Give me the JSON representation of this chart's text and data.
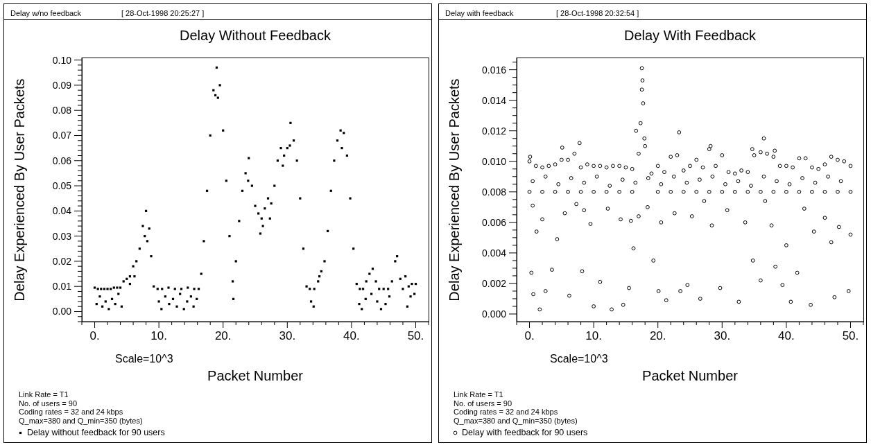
{
  "chart_data": [
    {
      "type": "scatter",
      "title": "Delay Without Feedback",
      "xlabel": "Packet Number",
      "ylabel": "Delay Experienced By User Packets",
      "annotations": [
        "Delay w/no feedback",
        "[ 28-Oct-1998 20:25:27 ]",
        "Scale=10^3",
        "Link Rate = T1",
        "No. of users = 90",
        "Coding rates = 32 and 24 kbps",
        "Q_max=380 and Q_min=350 (bytes)"
      ],
      "series": [
        {
          "name": "Delay without feedback for 90 users",
          "color": "#000000",
          "x": [
            0.0,
            0.5,
            1.0,
            1.5,
            2.0,
            2.5,
            3.0,
            3.5,
            4.0,
            4.5,
            5.0,
            5.5,
            6.0,
            6.5,
            7.0,
            7.5,
            8.0,
            8.5,
            8.8,
            9.2,
            9.8,
            10.5,
            11.5,
            12.5,
            13.5,
            14.5,
            15.5,
            16.2,
            16.6,
            17.0,
            17.5,
            18.0,
            18.5,
            19.0,
            19.5,
            20.0,
            20.5,
            21.0,
            21.5,
            22.0,
            22.5,
            23.0,
            23.5,
            24.0,
            24.5,
            25.0,
            25.5,
            26.0,
            26.5,
            27.0,
            27.5,
            28.0,
            28.5,
            29.0,
            29.5,
            30.0,
            30.5,
            31.0,
            31.5,
            32.0,
            32.5,
            33.0,
            33.5,
            34.2,
            34.8,
            35.3,
            35.8,
            36.3,
            36.8,
            37.3,
            37.8,
            38.3,
            38.8,
            39.3,
            39.8,
            40.3,
            40.8,
            41.3,
            41.8,
            42.3,
            42.8,
            43.3,
            43.8,
            44.3,
            45.0,
            45.7,
            46.3,
            46.8,
            47.1,
            47.6,
            48.0,
            48.4,
            48.9,
            49.4,
            50.0,
            5.5,
            6.2,
            7.8,
            8.2,
            18.8,
            19.2,
            23.9,
            25.8,
            26.2,
            27.3,
            29.3,
            30.4,
            35.0,
            38.5,
            0.3,
            0.8,
            1.2,
            1.7,
            2.2,
            2.7,
            3.2,
            3.7,
            4.2,
            10.0,
            10.4,
            11.0,
            11.6,
            12.2,
            12.8,
            13.3,
            13.9,
            14.4,
            15.0,
            15.4,
            15.9,
            21.6,
            33.7,
            34.1,
            41.2,
            41.6,
            42.2,
            43.1,
            44.0,
            44.6,
            45.3,
            45.9,
            48.7,
            49.2,
            49.8
          ],
          "values": [
            0.0095,
            0.009,
            0.009,
            0.009,
            0.009,
            0.009,
            0.0095,
            0.0095,
            0.0095,
            0.012,
            0.013,
            0.014,
            0.018,
            0.02,
            0.025,
            0.034,
            0.04,
            0.033,
            0.022,
            0.01,
            0.009,
            0.009,
            0.0095,
            0.009,
            0.009,
            0.0095,
            0.009,
            0.009,
            0.015,
            0.028,
            0.048,
            0.07,
            0.088,
            0.097,
            0.09,
            0.072,
            0.052,
            0.03,
            0.012,
            0.02,
            0.036,
            0.048,
            0.055,
            0.061,
            0.05,
            0.042,
            0.039,
            0.037,
            0.041,
            0.045,
            0.043,
            0.05,
            0.06,
            0.065,
            0.062,
            0.065,
            0.075,
            0.068,
            0.06,
            0.045,
            0.025,
            0.01,
            0.009,
            0.009,
            0.012,
            0.016,
            0.02,
            0.032,
            0.048,
            0.06,
            0.068,
            0.072,
            0.071,
            0.062,
            0.045,
            0.025,
            0.011,
            0.009,
            0.009,
            0.012,
            0.015,
            0.017,
            0.012,
            0.009,
            0.009,
            0.009,
            0.012,
            0.02,
            0.022,
            0.013,
            0.009,
            0.014,
            0.01,
            0.011,
            0.011,
            0.011,
            0.014,
            0.03,
            0.028,
            0.086,
            0.085,
            0.052,
            0.031,
            0.034,
            0.037,
            0.058,
            0.066,
            0.014,
            0.065,
            0.003,
            0.006,
            0.002,
            0.004,
            0.001,
            0.005,
            0.003,
            0.007,
            0.002,
            0.004,
            0.001,
            0.006,
            0.003,
            0.005,
            0.002,
            0.007,
            0.001,
            0.004,
            0.006,
            0.002,
            0.005,
            0.005,
            0.004,
            0.002,
            0.003,
            0.001,
            0.005,
            0.007,
            0.004,
            0.001,
            0.003,
            0.006,
            0.002,
            0.006,
            0.007
          ]
        }
      ],
      "xlim": [
        -2,
        52
      ],
      "xticks": [
        {
          "value": -2,
          "label": null
        },
        {
          "value": 0,
          "label": "0."
        },
        {
          "value": 2,
          "label": null
        },
        {
          "value": 4,
          "label": null
        },
        {
          "value": 6,
          "label": null
        },
        {
          "value": 8,
          "label": null
        },
        {
          "value": 10,
          "label": "10."
        },
        {
          "value": 12,
          "label": null
        },
        {
          "value": 14,
          "label": null
        },
        {
          "value": 16,
          "label": null
        },
        {
          "value": 18,
          "label": null
        },
        {
          "value": 20,
          "label": "20."
        },
        {
          "value": 22,
          "label": null
        },
        {
          "value": 24,
          "label": null
        },
        {
          "value": 26,
          "label": null
        },
        {
          "value": 28,
          "label": null
        },
        {
          "value": 30,
          "label": "30."
        },
        {
          "value": 32,
          "label": null
        },
        {
          "value": 34,
          "label": null
        },
        {
          "value": 36,
          "label": null
        },
        {
          "value": 38,
          "label": null
        },
        {
          "value": 40,
          "label": "40."
        },
        {
          "value": 42,
          "label": null
        },
        {
          "value": 44,
          "label": null
        },
        {
          "value": 46,
          "label": null
        },
        {
          "value": 48,
          "label": null
        },
        {
          "value": 50,
          "label": "50."
        },
        {
          "value": 52,
          "label": null
        }
      ],
      "ylim": [
        -0.004,
        0.101
      ],
      "yticks": [
        {
          "value": -0.004,
          "label": null
        },
        {
          "value": -0.002,
          "label": null
        },
        {
          "value": 0,
          "label": "0.00"
        },
        {
          "value": 0.002,
          "label": null
        },
        {
          "value": 0.004,
          "label": null
        },
        {
          "value": 0.006,
          "label": null
        },
        {
          "value": 0.008,
          "label": null
        },
        {
          "value": 0.01,
          "label": "0.01"
        },
        {
          "value": 0.012,
          "label": null
        },
        {
          "value": 0.014,
          "label": null
        },
        {
          "value": 0.016,
          "label": null
        },
        {
          "value": 0.018,
          "label": null
        },
        {
          "value": 0.02,
          "label": "0.02"
        },
        {
          "value": 0.022,
          "label": null
        },
        {
          "value": 0.024,
          "label": null
        },
        {
          "value": 0.026,
          "label": null
        },
        {
          "value": 0.028,
          "label": null
        },
        {
          "value": 0.03,
          "label": "0.03"
        },
        {
          "value": 0.032,
          "label": null
        },
        {
          "value": 0.034,
          "label": null
        },
        {
          "value": 0.036,
          "label": null
        },
        {
          "value": 0.038,
          "label": null
        },
        {
          "value": 0.04,
          "label": "0.04"
        },
        {
          "value": 0.042,
          "label": null
        },
        {
          "value": 0.044,
          "label": null
        },
        {
          "value": 0.046,
          "label": null
        },
        {
          "value": 0.048,
          "label": null
        },
        {
          "value": 0.05,
          "label": "0.05"
        },
        {
          "value": 0.052,
          "label": null
        },
        {
          "value": 0.054,
          "label": null
        },
        {
          "value": 0.056,
          "label": null
        },
        {
          "value": 0.058,
          "label": null
        },
        {
          "value": 0.06,
          "label": "0.06"
        },
        {
          "value": 0.062,
          "label": null
        },
        {
          "value": 0.064,
          "label": null
        },
        {
          "value": 0.066,
          "label": null
        },
        {
          "value": 0.068,
          "label": null
        },
        {
          "value": 0.07,
          "label": "0.07"
        },
        {
          "value": 0.072,
          "label": null
        },
        {
          "value": 0.074,
          "label": null
        },
        {
          "value": 0.076,
          "label": null
        },
        {
          "value": 0.078,
          "label": null
        },
        {
          "value": 0.08,
          "label": "0.08"
        },
        {
          "value": 0.082,
          "label": null
        },
        {
          "value": 0.084,
          "label": null
        },
        {
          "value": 0.086,
          "label": null
        },
        {
          "value": 0.088,
          "label": null
        },
        {
          "value": 0.09,
          "label": "0.09"
        },
        {
          "value": 0.092,
          "label": null
        },
        {
          "value": 0.094,
          "label": null
        },
        {
          "value": 0.096,
          "label": null
        },
        {
          "value": 0.098,
          "label": null
        },
        {
          "value": 0.1,
          "label": "0.10"
        }
      ],
      "marker": "square",
      "legend": "bottom left"
    },
    {
      "type": "scatter",
      "title": "Delay With Feedback",
      "xlabel": "Packet Number",
      "ylabel": "Delay Experienced By User Packets",
      "annotations": [
        "Delay with feedback",
        "[ 28-Oct-1998 20:32:54 ]",
        "Scale=10^3",
        "Link Rate = T1",
        "No. of users = 90",
        "Coding rates = 32 and 24 kbps",
        "Q_max=380 and Q_min=350 (bytes)"
      ],
      "series": [
        {
          "name": "Delay with feedback for 90 users",
          "color": "#000000",
          "x": [
            0,
            1,
            2,
            3,
            4,
            5,
            6,
            7,
            8,
            9,
            10,
            11,
            12,
            13,
            14,
            15,
            16,
            17,
            18,
            19,
            20,
            21,
            22,
            23,
            24,
            25,
            26,
            27,
            28,
            29,
            30,
            31,
            32,
            33,
            34,
            35,
            36,
            37,
            38,
            39,
            40,
            41,
            42,
            43,
            44,
            45,
            46,
            47,
            48,
            49,
            50,
            0,
            2,
            4,
            6,
            8,
            10,
            12,
            14,
            16,
            20,
            22,
            24,
            26,
            28,
            30,
            32,
            34,
            36,
            38,
            40,
            42,
            44,
            46,
            48,
            50,
            17.3,
            17.5,
            17.7,
            17.9,
            17.5,
            17.6,
            16.6,
            23.3,
            36.5,
            7.8,
            5.1,
            34.7,
            38.2,
            28.2,
            0.1,
            0.3,
            0.5,
            0.6,
            1.1,
            1.6,
            2.0,
            2.5,
            3.5,
            4.3,
            5.5,
            6.2,
            7.3,
            8.2,
            8.5,
            9.5,
            10.0,
            11.0,
            12.2,
            12.8,
            14.2,
            14.6,
            15.5,
            15.8,
            16.2,
            17.0,
            18.4,
            19.3,
            20.1,
            20.5,
            21.3,
            22.6,
            23.5,
            24.6,
            25.3,
            26.6,
            27.2,
            28.4,
            29.7,
            30.8,
            32.6,
            33.6,
            34.8,
            36.0,
            36.7,
            37.7,
            38.3,
            39.4,
            40.0,
            40.7,
            41.7,
            42.8,
            43.8,
            44.3,
            46.0,
            47.0,
            47.5,
            48.2,
            49.7,
            50.0,
            0.5,
            2.5,
            4.5,
            6.5,
            8.5,
            10.5,
            12.5,
            14.5,
            16.5,
            18.5,
            20.5,
            22.5,
            24.5,
            26.5,
            28.5,
            30.5,
            32.5,
            34.5,
            36.5,
            38.5,
            40.5,
            42.5,
            44.5,
            46.5,
            48.5
          ],
          "values": [
            0.01,
            0.0097,
            0.0096,
            0.0097,
            0.0098,
            0.0101,
            0.0101,
            0.0105,
            0.0096,
            0.0098,
            0.0097,
            0.0097,
            0.0096,
            0.0097,
            0.0097,
            0.0096,
            0.0095,
            0.0105,
            0.011,
            0.0092,
            0.0097,
            0.0093,
            0.0103,
            0.0104,
            0.0094,
            0.0097,
            0.0101,
            0.0096,
            0.0108,
            0.0097,
            0.0104,
            0.0093,
            0.0092,
            0.0094,
            0.0093,
            0.0104,
            0.0106,
            0.0105,
            0.0103,
            0.0097,
            0.0097,
            0.0096,
            0.0102,
            0.0102,
            0.0096,
            0.0095,
            0.0098,
            0.0103,
            0.0101,
            0.01,
            0.0097,
            0.008,
            0.008,
            0.008,
            0.008,
            0.008,
            0.008,
            0.008,
            0.008,
            0.008,
            0.008,
            0.008,
            0.008,
            0.008,
            0.008,
            0.008,
            0.008,
            0.008,
            0.008,
            0.008,
            0.008,
            0.008,
            0.008,
            0.008,
            0.008,
            0.008,
            0.0125,
            0.0147,
            0.0138,
            0.0115,
            0.0161,
            0.0153,
            0.012,
            0.0119,
            0.0115,
            0.0112,
            0.0109,
            0.0108,
            0.0107,
            0.011,
            0.0103,
            0.0027,
            0.0071,
            0.0013,
            0.0054,
            0.0003,
            0.0062,
            0.0015,
            0.0029,
            0.0049,
            0.0066,
            0.0012,
            0.0072,
            0.0028,
            0.0068,
            0.0059,
            0.0005,
            0.0021,
            0.0069,
            0.0003,
            0.0062,
            0.0006,
            0.0017,
            0.0061,
            0.0043,
            0.0064,
            0.007,
            0.0035,
            0.0015,
            0.006,
            0.0009,
            0.0066,
            0.0015,
            0.0019,
            0.0064,
            0.001,
            0.0074,
            0.0058,
            0.0017,
            0.0068,
            0.0008,
            0.006,
            0.0035,
            0.0022,
            0.0074,
            0.0058,
            0.0031,
            0.0019,
            0.0045,
            0.0008,
            0.0027,
            0.0069,
            0.0006,
            0.0054,
            0.0063,
            0.0047,
            0.0011,
            0.0057,
            0.0015,
            0.0052,
            0.0087,
            0.009,
            0.0085,
            0.0089,
            0.0086,
            0.009,
            0.0084,
            0.0088,
            0.0086,
            0.0089,
            0.0085,
            0.009,
            0.0086,
            0.0088,
            0.009,
            0.0085,
            0.0087,
            0.0084,
            0.009,
            0.0087,
            0.0085,
            0.0089,
            0.0086,
            0.009,
            0.0087
          ]
        }
      ],
      "xlim": [
        -2,
        52
      ],
      "xticks": [
        {
          "value": -2,
          "label": null
        },
        {
          "value": 0,
          "label": "0."
        },
        {
          "value": 2,
          "label": null
        },
        {
          "value": 4,
          "label": null
        },
        {
          "value": 6,
          "label": null
        },
        {
          "value": 8,
          "label": null
        },
        {
          "value": 10,
          "label": "10."
        },
        {
          "value": 12,
          "label": null
        },
        {
          "value": 14,
          "label": null
        },
        {
          "value": 16,
          "label": null
        },
        {
          "value": 18,
          "label": null
        },
        {
          "value": 20,
          "label": "20."
        },
        {
          "value": 22,
          "label": null
        },
        {
          "value": 24,
          "label": null
        },
        {
          "value": 26,
          "label": null
        },
        {
          "value": 28,
          "label": null
        },
        {
          "value": 30,
          "label": "30."
        },
        {
          "value": 32,
          "label": null
        },
        {
          "value": 34,
          "label": null
        },
        {
          "value": 36,
          "label": null
        },
        {
          "value": 38,
          "label": null
        },
        {
          "value": 40,
          "label": "40."
        },
        {
          "value": 42,
          "label": null
        },
        {
          "value": 44,
          "label": null
        },
        {
          "value": 46,
          "label": null
        },
        {
          "value": 48,
          "label": null
        },
        {
          "value": 50,
          "label": "50."
        },
        {
          "value": 52,
          "label": null
        }
      ],
      "ylim": [
        -0.0005,
        0.0168
      ],
      "yticks": [
        {
          "value": 0,
          "label": "0.000"
        },
        {
          "value": 0.0005,
          "label": null
        },
        {
          "value": 0.001,
          "label": null
        },
        {
          "value": 0.0015,
          "label": null
        },
        {
          "value": 0.002,
          "label": "0.002"
        },
        {
          "value": 0.0025,
          "label": null
        },
        {
          "value": 0.003,
          "label": null
        },
        {
          "value": 0.0035,
          "label": null
        },
        {
          "value": 0.004,
          "label": "0.004"
        },
        {
          "value": 0.0045,
          "label": null
        },
        {
          "value": 0.005,
          "label": null
        },
        {
          "value": 0.0055,
          "label": null
        },
        {
          "value": 0.006,
          "label": "0.006"
        },
        {
          "value": 0.0065,
          "label": null
        },
        {
          "value": 0.007,
          "label": null
        },
        {
          "value": 0.0075,
          "label": null
        },
        {
          "value": 0.008,
          "label": "0.008"
        },
        {
          "value": 0.0085,
          "label": null
        },
        {
          "value": 0.009,
          "label": null
        },
        {
          "value": 0.0095,
          "label": null
        },
        {
          "value": 0.01,
          "label": "0.010"
        },
        {
          "value": 0.0105,
          "label": null
        },
        {
          "value": 0.011,
          "label": null
        },
        {
          "value": 0.0115,
          "label": null
        },
        {
          "value": 0.012,
          "label": "0.012"
        },
        {
          "value": 0.0125,
          "label": null
        },
        {
          "value": 0.013,
          "label": null
        },
        {
          "value": 0.0135,
          "label": null
        },
        {
          "value": 0.014,
          "label": "0.014"
        },
        {
          "value": 0.0145,
          "label": null
        },
        {
          "value": 0.015,
          "label": null
        },
        {
          "value": 0.0155,
          "label": null
        },
        {
          "value": 0.016,
          "label": "0.016"
        },
        {
          "value": 0.0165,
          "label": null
        }
      ],
      "marker": "circle",
      "legend": "bottom left"
    }
  ]
}
